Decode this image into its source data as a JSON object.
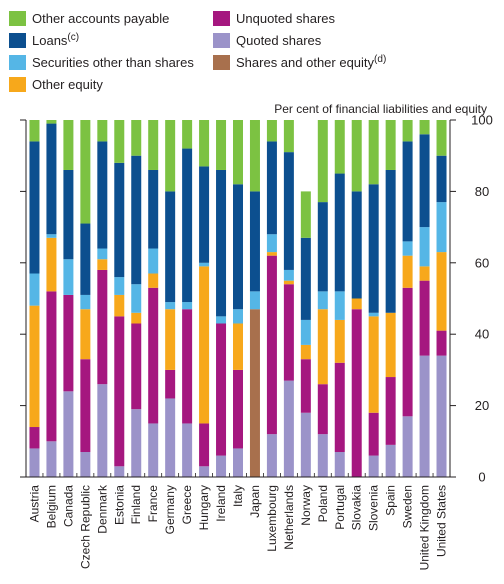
{
  "chart_data": {
    "type": "bar",
    "stacked": true,
    "unit_label": "Per cent of financial liabilities and equity",
    "ylim": [
      0,
      100
    ],
    "yticks": [
      0,
      20,
      40,
      60,
      80,
      100
    ],
    "y_axis_side": "right",
    "grid": false,
    "legend_position": "top",
    "categories": [
      "Austria",
      "Belgium",
      "Canada",
      "Czech Republic",
      "Denmark",
      "Estonia",
      "Finland",
      "France",
      "Germany",
      "Greece",
      "Hungary",
      "Ireland",
      "Italy",
      "Japan",
      "Luxembourg",
      "Netherlands",
      "Norway",
      "Poland",
      "Portugal",
      "Slovakia",
      "Slovenia",
      "Spain",
      "Sweden",
      "United Kingdom",
      "United States"
    ],
    "series": [
      {
        "name": "Quoted shares",
        "color": "#9b93c9",
        "values": [
          8,
          10,
          24,
          7,
          26,
          3,
          19,
          15,
          22,
          15,
          3,
          6,
          8,
          0,
          12,
          27,
          18,
          12,
          7,
          0,
          6,
          9,
          17,
          34,
          34
        ]
      },
      {
        "name": "Unquoted shares",
        "color": "#a5177f",
        "values": [
          6,
          42,
          27,
          26,
          32,
          42,
          24,
          38,
          8,
          32,
          12,
          37,
          22,
          0,
          50,
          27,
          15,
          14,
          25,
          47,
          12,
          19,
          36,
          21,
          7
        ]
      },
      {
        "name": "Shares and other equity",
        "superscript": "(d)",
        "color": "#a8704d",
        "values": [
          0,
          0,
          0,
          0,
          0,
          0,
          0,
          0,
          0,
          0,
          0,
          0,
          0,
          47,
          0,
          0,
          0,
          0,
          0,
          0,
          0,
          0,
          0,
          0,
          0
        ]
      },
      {
        "name": "Other equity",
        "color": "#f7a81b",
        "values": [
          34,
          15,
          0,
          14,
          3,
          6,
          3,
          4,
          17,
          0,
          44,
          0,
          13,
          0,
          1,
          1,
          4,
          21,
          12,
          3,
          27,
          18,
          9,
          4,
          22
        ]
      },
      {
        "name": "Securities other than shares",
        "color": "#55b6e6",
        "values": [
          9,
          1,
          10,
          4,
          3,
          5,
          8,
          7,
          2,
          2,
          1,
          2,
          4,
          5,
          5,
          3,
          7,
          5,
          8,
          0,
          1,
          0,
          4,
          11,
          14
        ]
      },
      {
        "name": "Loans",
        "superscript": "(c)",
        "color": "#0c4f8f",
        "values": [
          37,
          31,
          25,
          20,
          30,
          32,
          36,
          22,
          31,
          43,
          27,
          41,
          35,
          28,
          26,
          33,
          23,
          25,
          33,
          30,
          36,
          40,
          28,
          26,
          13
        ]
      },
      {
        "name": "Other accounts payable",
        "color": "#7cc242",
        "values": [
          6,
          1,
          14,
          29,
          6,
          12,
          10,
          14,
          20,
          8,
          13,
          14,
          18,
          20,
          6,
          9,
          13,
          23,
          15,
          20,
          18,
          14,
          6,
          4,
          10
        ]
      }
    ]
  },
  "legend": {
    "items": [
      {
        "label": "Other accounts payable",
        "sup": "",
        "color": "#7cc242"
      },
      {
        "label": "Unquoted shares",
        "sup": "",
        "color": "#a5177f"
      },
      {
        "label": "Loans",
        "sup": "(c)",
        "color": "#0c4f8f"
      },
      {
        "label": "Quoted shares",
        "sup": "",
        "color": "#9b93c9"
      },
      {
        "label": "Securities other than shares",
        "sup": "",
        "color": "#55b6e6"
      },
      {
        "label": "Shares and other equity",
        "sup": "(d)",
        "color": "#a8704d"
      },
      {
        "label": "Other equity",
        "sup": "",
        "color": "#f7a81b"
      }
    ]
  }
}
